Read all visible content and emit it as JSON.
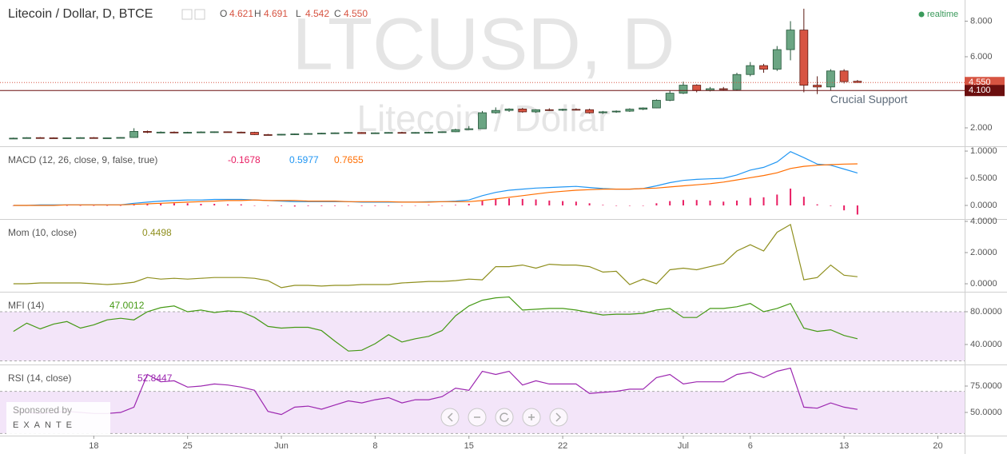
{
  "chart_data": [
    {
      "type": "candlestick",
      "title": "Litecoin / Dollar, D, BTCE",
      "status": "realtime",
      "watermark": [
        "LTCUSD, D",
        "Litecoin / Dollar"
      ],
      "ohlc_keys": [
        "O",
        "H",
        "L",
        "C"
      ],
      "ohlc_labels": [
        "4.621",
        "4.691",
        "4.542",
        "4.550"
      ],
      "up_color": "#6ba583",
      "down_color": "#d75442",
      "open": [
        1.4,
        1.42,
        1.45,
        1.44,
        1.43,
        1.44,
        1.45,
        1.43,
        1.44,
        1.46,
        1.8,
        1.75,
        1.76,
        1.74,
        1.75,
        1.77,
        1.78,
        1.76,
        1.75,
        1.62,
        1.6,
        1.64,
        1.66,
        1.68,
        1.7,
        1.72,
        1.74,
        1.68,
        1.72,
        1.74,
        1.72,
        1.74,
        1.75,
        1.78,
        1.9,
        1.95,
        2.85,
        2.98,
        3.06,
        2.9,
        3.02,
        3.0,
        3.04,
        3.02,
        2.85,
        2.9,
        2.94,
        3.05,
        3.12,
        3.55,
        3.95,
        4.4,
        4.1,
        4.2,
        4.15,
        5.0,
        5.5,
        5.3,
        6.4,
        7.5,
        4.4,
        4.3,
        5.2,
        4.621
      ],
      "high": [
        1.45,
        1.47,
        1.48,
        1.47,
        1.46,
        1.47,
        1.48,
        1.46,
        1.48,
        1.98,
        1.85,
        1.8,
        1.8,
        1.78,
        1.8,
        1.8,
        1.8,
        1.79,
        1.78,
        1.66,
        1.66,
        1.68,
        1.7,
        1.72,
        1.74,
        1.76,
        1.76,
        1.74,
        1.76,
        1.78,
        1.76,
        1.78,
        1.8,
        1.95,
        2.1,
        2.95,
        3.15,
        3.1,
        3.12,
        3.05,
        3.1,
        3.08,
        3.1,
        3.08,
        2.95,
        2.98,
        3.1,
        3.15,
        3.6,
        4.1,
        4.6,
        4.45,
        4.3,
        4.3,
        5.1,
        5.7,
        5.6,
        6.6,
        8.0,
        8.7,
        4.9,
        5.3,
        5.3,
        4.691
      ],
      "low": [
        1.38,
        1.4,
        1.42,
        1.41,
        1.4,
        1.42,
        1.42,
        1.4,
        1.42,
        1.44,
        1.7,
        1.7,
        1.7,
        1.7,
        1.72,
        1.72,
        1.74,
        1.72,
        1.6,
        1.58,
        1.58,
        1.6,
        1.62,
        1.64,
        1.66,
        1.68,
        1.66,
        1.66,
        1.7,
        1.7,
        1.68,
        1.7,
        1.72,
        1.76,
        1.88,
        1.93,
        2.8,
        2.9,
        2.85,
        2.85,
        2.95,
        2.95,
        2.98,
        2.8,
        2.78,
        2.85,
        2.9,
        3.0,
        3.1,
        3.5,
        3.9,
        4.0,
        4.05,
        4.1,
        4.1,
        4.9,
        5.1,
        5.2,
        5.8,
        4.0,
        3.9,
        4.1,
        4.5,
        4.542
      ],
      "close": [
        1.42,
        1.45,
        1.44,
        1.43,
        1.44,
        1.45,
        1.43,
        1.44,
        1.46,
        1.8,
        1.75,
        1.76,
        1.74,
        1.75,
        1.77,
        1.78,
        1.76,
        1.75,
        1.62,
        1.6,
        1.64,
        1.66,
        1.68,
        1.7,
        1.72,
        1.74,
        1.68,
        1.72,
        1.74,
        1.72,
        1.74,
        1.75,
        1.78,
        1.9,
        1.95,
        2.85,
        2.98,
        3.06,
        2.9,
        3.02,
        3.0,
        3.04,
        3.02,
        2.85,
        2.9,
        2.94,
        3.05,
        3.12,
        3.55,
        3.95,
        4.4,
        4.1,
        4.2,
        4.15,
        5.0,
        5.5,
        5.3,
        6.4,
        7.5,
        4.4,
        4.3,
        5.2,
        4.6,
        4.55
      ],
      "support": {
        "value": 4.1,
        "label": "4.100",
        "text": "Crucial Support"
      },
      "xlim": [
        -1,
        71
      ],
      "ylim": [
        1.01,
        9.19
      ],
      "yticks": [
        {
          "value": 2,
          "label": "2.000"
        },
        {
          "value": 6,
          "label": "6.000"
        },
        {
          "value": 8,
          "label": "8.000"
        }
      ]
    },
    {
      "type": "macd",
      "title": "MACD (12, 26, close, 9, false, true)",
      "series": [
        {
          "style": "histogram",
          "color": "#e91e63",
          "values": [
            0,
            0,
            0.01,
            0.01,
            0,
            0,
            0,
            0,
            0,
            0.02,
            0.03,
            0.04,
            0.04,
            0.04,
            0.03,
            0.03,
            0.02,
            0.02,
            0,
            0,
            -0.01,
            -0.02,
            -0.01,
            -0.01,
            -0.01,
            0,
            -0.01,
            -0.01,
            -0.01,
            0,
            0,
            0.01,
            0,
            0.01,
            0.03,
            0.09,
            0.12,
            0.13,
            0.12,
            0.11,
            0.09,
            0.08,
            0.07,
            0.04,
            0.01,
            0,
            0,
            0,
            0.04,
            0.08,
            0.1,
            0.1,
            0.09,
            0.07,
            0.09,
            0.14,
            0.15,
            0.2,
            0.31,
            0.16,
            0.02,
            -0.01,
            -0.09,
            -0.1678
          ]
        },
        {
          "style": "line",
          "color": "#2196f3",
          "values": [
            0,
            0,
            0.01,
            0.01,
            0.01,
            0.01,
            0.01,
            0.01,
            0.01,
            0.04,
            0.06,
            0.08,
            0.09,
            0.1,
            0.1,
            0.11,
            0.11,
            0.11,
            0.1,
            0.09,
            0.08,
            0.07,
            0.07,
            0.07,
            0.07,
            0.07,
            0.06,
            0.06,
            0.06,
            0.06,
            0.06,
            0.07,
            0.07,
            0.08,
            0.1,
            0.18,
            0.24,
            0.28,
            0.3,
            0.32,
            0.33,
            0.34,
            0.35,
            0.33,
            0.31,
            0.3,
            0.3,
            0.31,
            0.36,
            0.42,
            0.46,
            0.48,
            0.49,
            0.5,
            0.56,
            0.65,
            0.7,
            0.8,
            0.99,
            0.88,
            0.76,
            0.74,
            0.67,
            0.5977
          ]
        },
        {
          "style": "line",
          "color": "#ff6d00",
          "values": [
            0,
            0,
            0,
            0,
            0.01,
            0.01,
            0.01,
            0.01,
            0.01,
            0.02,
            0.03,
            0.04,
            0.05,
            0.06,
            0.07,
            0.08,
            0.09,
            0.09,
            0.1,
            0.09,
            0.09,
            0.09,
            0.08,
            0.08,
            0.08,
            0.07,
            0.07,
            0.07,
            0.07,
            0.06,
            0.06,
            0.06,
            0.07,
            0.07,
            0.07,
            0.09,
            0.12,
            0.15,
            0.18,
            0.21,
            0.24,
            0.26,
            0.28,
            0.29,
            0.3,
            0.3,
            0.3,
            0.31,
            0.32,
            0.34,
            0.36,
            0.38,
            0.4,
            0.43,
            0.47,
            0.51,
            0.55,
            0.6,
            0.68,
            0.72,
            0.74,
            0.75,
            0.76,
            0.7655
          ]
        }
      ],
      "xlim": [
        -1,
        71
      ],
      "ylim": [
        -0.235,
        1.074
      ],
      "yticks": [
        {
          "value": 0,
          "label": "0.0000"
        },
        {
          "value": 0.5,
          "label": "0.5000"
        },
        {
          "value": 1,
          "label": "1.0000"
        }
      ]
    },
    {
      "type": "line",
      "title": "Mom (10, close)",
      "series": [
        {
          "color": "#8f8f1e",
          "values": [
            0,
            0,
            0.05,
            0.05,
            0.05,
            0.05,
            0,
            -0.05,
            0,
            0.1,
            0.4,
            0.3,
            0.35,
            0.3,
            0.35,
            0.4,
            0.4,
            0.4,
            0.35,
            0.2,
            -0.25,
            -0.1,
            -0.1,
            -0.15,
            -0.1,
            -0.1,
            -0.05,
            -0.05,
            -0.05,
            0.05,
            0.1,
            0.15,
            0.15,
            0.2,
            0.3,
            0.25,
            1.1,
            1.1,
            1.2,
            1.0,
            1.25,
            1.2,
            1.2,
            1.1,
            0.75,
            0.8,
            -0.05,
            0.3,
            0,
            0.9,
            1.0,
            0.9,
            1.1,
            1.3,
            2.1,
            2.5,
            2.1,
            3.3,
            3.8,
            0.25,
            0.4,
            1.2,
            0.55,
            0.4498
          ]
        }
      ],
      "xlim": [
        -1,
        71
      ],
      "ylim": [
        -0.46,
        4.1
      ],
      "yticks": [
        {
          "value": 0,
          "label": "0.0000"
        },
        {
          "value": 2,
          "label": "2.0000"
        },
        {
          "value": 4,
          "label": "4.0000"
        }
      ]
    },
    {
      "type": "line",
      "title": "MFI (14)",
      "bands": [
        20,
        80
      ],
      "band_color": "#f3e5f9",
      "series": [
        {
          "color": "#459915",
          "values": [
            56,
            66,
            59,
            65,
            68,
            60,
            64,
            70,
            72,
            70,
            80,
            85,
            87,
            80,
            82,
            79,
            81,
            80,
            73,
            62,
            60,
            61,
            61,
            57,
            44,
            32,
            33,
            41,
            52,
            43,
            47,
            50,
            57,
            75,
            87,
            94,
            97,
            98,
            82,
            83,
            84,
            84,
            82,
            79,
            76,
            77,
            77,
            78,
            82,
            84,
            73,
            73,
            84,
            84,
            86,
            90,
            80,
            84,
            90,
            60,
            56,
            58,
            51,
            47.0012
          ]
        }
      ],
      "xlim": [
        -1,
        71
      ],
      "ylim": [
        16.6,
        103.4
      ],
      "yticks": [
        {
          "value": 40,
          "label": "40.0000"
        },
        {
          "value": 80,
          "label": "80.0000"
        }
      ]
    },
    {
      "type": "line",
      "title": "RSI (14, close)",
      "bands": [
        30,
        70
      ],
      "band_color": "#f3e5f9",
      "series": [
        {
          "color": "#9c27b0",
          "values": [
            51,
            50,
            49,
            50,
            51,
            50,
            49,
            49,
            50,
            55,
            86,
            79,
            80,
            74,
            75,
            77,
            76,
            74,
            71,
            51,
            48,
            55,
            56,
            53,
            57,
            61,
            59,
            62,
            64,
            59,
            62,
            62,
            65,
            73,
            71,
            89,
            86,
            89,
            76,
            80,
            77,
            77,
            77,
            68,
            69,
            70,
            72,
            72,
            83,
            86,
            77,
            79,
            79,
            79,
            86,
            88,
            83,
            89,
            92,
            55,
            54,
            59,
            55,
            52.8447
          ]
        }
      ],
      "xlim": [
        -1,
        71
      ],
      "ylim": [
        28.0,
        94.7
      ],
      "yticks": [
        {
          "value": 50,
          "label": "50.0000"
        },
        {
          "value": 75,
          "label": "75.0000"
        }
      ],
      "xticks": [
        {
          "value": 6,
          "label": "18"
        },
        {
          "value": 13,
          "label": "25"
        },
        {
          "value": 20,
          "label": "Jun"
        },
        {
          "value": 27,
          "label": "8"
        },
        {
          "value": 34,
          "label": "15"
        },
        {
          "value": 41,
          "label": "22"
        },
        {
          "value": 50,
          "label": "Jul"
        },
        {
          "value": 55,
          "label": "6"
        },
        {
          "value": 62,
          "label": "13"
        },
        {
          "value": 69,
          "label": "20"
        }
      ]
    }
  ],
  "sponsor": {
    "text": "Sponsored by",
    "name": "EXANTE"
  }
}
